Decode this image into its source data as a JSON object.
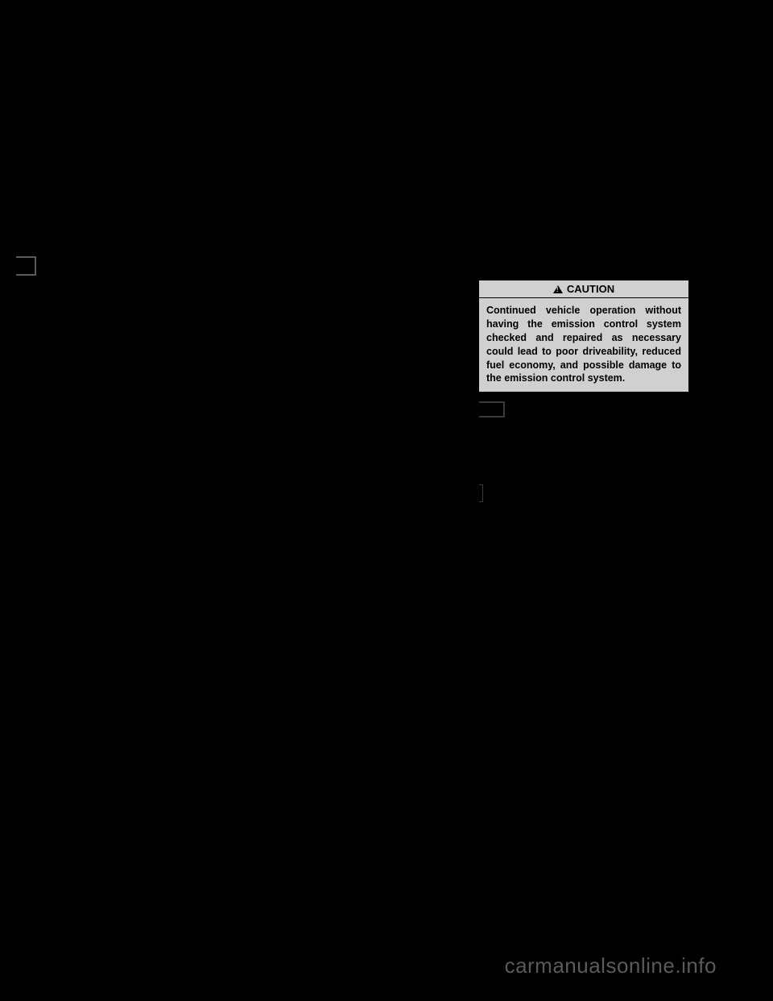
{
  "background_color": "#000000",
  "caution": {
    "header_label": "CAUTION",
    "header_bg": "#d0d0d0",
    "body_bg": "#d0d0d0",
    "border_color": "#000000",
    "text_color": "#000000",
    "body_text": "Continued vehicle operation without having the emission control system checked and repaired as necessary could lead to poor driveability, reduced fuel economy, and possible damage to the emission control system."
  },
  "watermark": {
    "text": "carmanualsonline.info",
    "color": "#5a5a5a"
  }
}
